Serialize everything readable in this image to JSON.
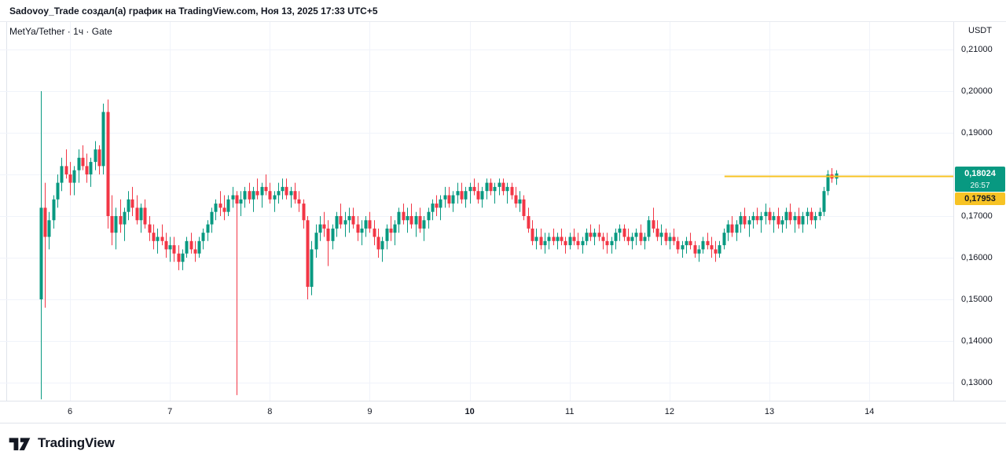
{
  "attribution": {
    "text": "Sadovoy_Trade создал(а) график на TradingView.com, Ноя 13, 2025 17:33 UTC+5"
  },
  "chart_header": {
    "symbol_title": "MetYa/Tether · 1ч · Gate",
    "quote_currency": "USDT"
  },
  "price_scale": {
    "labels": [
      {
        "price": 0.21,
        "text": "0,21000"
      },
      {
        "price": 0.2,
        "text": "0,20000"
      },
      {
        "price": 0.19,
        "text": "0,19000"
      },
      {
        "price": 0.17,
        "text": "0,17000"
      },
      {
        "price": 0.16,
        "text": "0,16000"
      },
      {
        "price": 0.15,
        "text": "0,15000"
      },
      {
        "price": 0.14,
        "text": "0,14000"
      },
      {
        "price": 0.13,
        "text": "0,13000"
      }
    ],
    "last_price_badge": {
      "text": "0,18024",
      "countdown": "26:57",
      "price": 0.18024,
      "bg": "#089981",
      "fg": "#ffffff"
    },
    "drawing_price_badge": {
      "text": "0,17953",
      "price": 0.17953,
      "bg": "#F7C325",
      "fg": "#131722"
    }
  },
  "time_scale": {
    "ticks": [
      {
        "day": 6,
        "label": "6",
        "bold": false
      },
      {
        "day": 7,
        "label": "7",
        "bold": false
      },
      {
        "day": 8,
        "label": "8",
        "bold": false
      },
      {
        "day": 9,
        "label": "9",
        "bold": false
      },
      {
        "day": 10,
        "label": "10",
        "bold": true
      },
      {
        "day": 11,
        "label": "11",
        "bold": false
      },
      {
        "day": 12,
        "label": "12",
        "bold": false
      },
      {
        "day": 13,
        "label": "13",
        "bold": false
      },
      {
        "day": 14,
        "label": "14",
        "bold": false
      }
    ]
  },
  "footer": {
    "brand": "TradingView"
  },
  "chart_data": {
    "type": "candlestick",
    "symbol": "MetYa/Tether",
    "interval": "1ч",
    "exchange": "Gate",
    "quote_currency": "USDT",
    "up_color": "#089981",
    "down_color": "#F23645",
    "grid": true,
    "grid_color": "#F0F3FA",
    "x_axis": {
      "unit": "day_of_november_2025",
      "start_day": 5.708,
      "step_days": 0.0416667,
      "visible_range": [
        5.3,
        14.84
      ]
    },
    "y_axis": {
      "visible_range": [
        0.12566,
        0.2166
      ],
      "tick_step": 0.01,
      "grid_prices": [
        0.21,
        0.2,
        0.19,
        0.18,
        0.17,
        0.16,
        0.15,
        0.14,
        0.13
      ]
    },
    "last_price": 0.18024,
    "bar_countdown": "26:57",
    "drawings": [
      {
        "type": "horizontal_ray",
        "price": 0.17953,
        "start_day": 12.55,
        "color": "#F7C325",
        "stroke_width": 2
      }
    ],
    "candles_ohlc": [
      [
        0.15,
        0.2,
        0.126,
        0.172
      ],
      [
        0.172,
        0.178,
        0.148,
        0.165
      ],
      [
        0.165,
        0.171,
        0.162,
        0.169
      ],
      [
        0.169,
        0.175,
        0.167,
        0.174
      ],
      [
        0.174,
        0.18,
        0.172,
        0.178
      ],
      [
        0.178,
        0.184,
        0.176,
        0.182
      ],
      [
        0.182,
        0.186,
        0.179,
        0.18
      ],
      [
        0.18,
        0.183,
        0.175,
        0.178
      ],
      [
        0.178,
        0.182,
        0.175,
        0.181
      ],
      [
        0.181,
        0.186,
        0.178,
        0.184
      ],
      [
        0.184,
        0.187,
        0.181,
        0.182
      ],
      [
        0.182,
        0.185,
        0.178,
        0.18
      ],
      [
        0.18,
        0.184,
        0.177,
        0.183
      ],
      [
        0.183,
        0.188,
        0.181,
        0.186
      ],
      [
        0.186,
        0.187,
        0.18,
        0.182
      ],
      [
        0.182,
        0.197,
        0.18,
        0.195
      ],
      [
        0.195,
        0.198,
        0.167,
        0.17
      ],
      [
        0.17,
        0.175,
        0.163,
        0.166
      ],
      [
        0.166,
        0.172,
        0.162,
        0.17
      ],
      [
        0.17,
        0.174,
        0.166,
        0.168
      ],
      [
        0.168,
        0.172,
        0.164,
        0.171
      ],
      [
        0.171,
        0.176,
        0.169,
        0.174
      ],
      [
        0.174,
        0.177,
        0.17,
        0.172
      ],
      [
        0.172,
        0.175,
        0.168,
        0.169
      ],
      [
        0.169,
        0.173,
        0.166,
        0.172
      ],
      [
        0.172,
        0.174,
        0.167,
        0.168
      ],
      [
        0.168,
        0.17,
        0.164,
        0.166
      ],
      [
        0.166,
        0.168,
        0.162,
        0.164
      ],
      [
        0.164,
        0.167,
        0.161,
        0.165
      ],
      [
        0.165,
        0.168,
        0.163,
        0.164
      ],
      [
        0.164,
        0.166,
        0.16,
        0.162
      ],
      [
        0.162,
        0.165,
        0.159,
        0.163
      ],
      [
        0.163,
        0.165,
        0.159,
        0.161
      ],
      [
        0.161,
        0.163,
        0.157,
        0.159
      ],
      [
        0.159,
        0.162,
        0.157,
        0.161
      ],
      [
        0.161,
        0.165,
        0.16,
        0.164
      ],
      [
        0.164,
        0.166,
        0.161,
        0.162
      ],
      [
        0.162,
        0.164,
        0.159,
        0.161
      ],
      [
        0.161,
        0.165,
        0.16,
        0.164
      ],
      [
        0.164,
        0.167,
        0.162,
        0.166
      ],
      [
        0.166,
        0.169,
        0.164,
        0.168
      ],
      [
        0.168,
        0.172,
        0.166,
        0.171
      ],
      [
        0.171,
        0.174,
        0.169,
        0.173
      ],
      [
        0.173,
        0.176,
        0.17,
        0.172
      ],
      [
        0.172,
        0.175,
        0.169,
        0.171
      ],
      [
        0.171,
        0.175,
        0.17,
        0.174
      ],
      [
        0.174,
        0.177,
        0.172,
        0.175
      ],
      [
        0.175,
        0.176,
        0.127,
        0.173
      ],
      [
        0.173,
        0.176,
        0.17,
        0.174
      ],
      [
        0.174,
        0.177,
        0.172,
        0.176
      ],
      [
        0.176,
        0.178,
        0.173,
        0.174
      ],
      [
        0.174,
        0.177,
        0.171,
        0.176
      ],
      [
        0.176,
        0.179,
        0.174,
        0.175
      ],
      [
        0.175,
        0.178,
        0.172,
        0.177
      ],
      [
        0.177,
        0.18,
        0.175,
        0.176
      ],
      [
        0.176,
        0.178,
        0.173,
        0.174
      ],
      [
        0.174,
        0.176,
        0.171,
        0.175
      ],
      [
        0.175,
        0.178,
        0.173,
        0.176
      ],
      [
        0.176,
        0.179,
        0.174,
        0.177
      ],
      [
        0.177,
        0.179,
        0.174,
        0.175
      ],
      [
        0.175,
        0.177,
        0.172,
        0.176
      ],
      [
        0.176,
        0.178,
        0.173,
        0.174
      ],
      [
        0.174,
        0.176,
        0.171,
        0.173
      ],
      [
        0.173,
        0.174,
        0.167,
        0.169
      ],
      [
        0.169,
        0.17,
        0.15,
        0.153
      ],
      [
        0.153,
        0.164,
        0.151,
        0.162
      ],
      [
        0.162,
        0.168,
        0.16,
        0.166
      ],
      [
        0.166,
        0.17,
        0.164,
        0.168
      ],
      [
        0.168,
        0.171,
        0.165,
        0.167
      ],
      [
        0.167,
        0.169,
        0.158,
        0.164
      ],
      [
        0.164,
        0.168,
        0.162,
        0.167
      ],
      [
        0.167,
        0.171,
        0.165,
        0.17
      ],
      [
        0.17,
        0.173,
        0.167,
        0.168
      ],
      [
        0.168,
        0.171,
        0.165,
        0.169
      ],
      [
        0.169,
        0.172,
        0.166,
        0.17
      ],
      [
        0.17,
        0.172,
        0.167,
        0.168
      ],
      [
        0.168,
        0.17,
        0.164,
        0.166
      ],
      [
        0.166,
        0.169,
        0.163,
        0.167
      ],
      [
        0.167,
        0.17,
        0.165,
        0.169
      ],
      [
        0.169,
        0.171,
        0.166,
        0.167
      ],
      [
        0.167,
        0.169,
        0.163,
        0.165
      ],
      [
        0.165,
        0.167,
        0.16,
        0.162
      ],
      [
        0.162,
        0.165,
        0.159,
        0.164
      ],
      [
        0.164,
        0.168,
        0.162,
        0.167
      ],
      [
        0.167,
        0.17,
        0.164,
        0.166
      ],
      [
        0.166,
        0.169,
        0.163,
        0.168
      ],
      [
        0.168,
        0.172,
        0.166,
        0.171
      ],
      [
        0.171,
        0.173,
        0.168,
        0.169
      ],
      [
        0.169,
        0.172,
        0.166,
        0.17
      ],
      [
        0.17,
        0.173,
        0.167,
        0.168
      ],
      [
        0.168,
        0.171,
        0.165,
        0.17
      ],
      [
        0.17,
        0.172,
        0.166,
        0.167
      ],
      [
        0.167,
        0.17,
        0.164,
        0.169
      ],
      [
        0.169,
        0.172,
        0.167,
        0.171
      ],
      [
        0.171,
        0.174,
        0.169,
        0.173
      ],
      [
        0.173,
        0.175,
        0.17,
        0.172
      ],
      [
        0.172,
        0.175,
        0.169,
        0.174
      ],
      [
        0.174,
        0.177,
        0.172,
        0.175
      ],
      [
        0.175,
        0.177,
        0.172,
        0.173
      ],
      [
        0.173,
        0.176,
        0.171,
        0.175
      ],
      [
        0.175,
        0.178,
        0.173,
        0.176
      ],
      [
        0.176,
        0.178,
        0.173,
        0.174
      ],
      [
        0.174,
        0.177,
        0.172,
        0.176
      ],
      [
        0.176,
        0.178,
        0.173,
        0.177
      ],
      [
        0.177,
        0.179,
        0.175,
        0.176
      ],
      [
        0.176,
        0.178,
        0.173,
        0.174
      ],
      [
        0.174,
        0.177,
        0.172,
        0.176
      ],
      [
        0.176,
        0.179,
        0.174,
        0.178
      ],
      [
        0.178,
        0.179,
        0.175,
        0.176
      ],
      [
        0.176,
        0.178,
        0.173,
        0.177
      ],
      [
        0.177,
        0.179,
        0.175,
        0.178
      ],
      [
        0.178,
        0.179,
        0.175,
        0.176
      ],
      [
        0.176,
        0.178,
        0.173,
        0.177
      ],
      [
        0.177,
        0.178,
        0.174,
        0.175
      ],
      [
        0.175,
        0.177,
        0.172,
        0.173
      ],
      [
        0.173,
        0.176,
        0.171,
        0.174
      ],
      [
        0.174,
        0.175,
        0.169,
        0.17
      ],
      [
        0.17,
        0.172,
        0.166,
        0.167
      ],
      [
        0.167,
        0.169,
        0.163,
        0.164
      ],
      [
        0.164,
        0.167,
        0.162,
        0.165
      ],
      [
        0.165,
        0.167,
        0.162,
        0.163
      ],
      [
        0.163,
        0.166,
        0.161,
        0.164
      ],
      [
        0.164,
        0.166,
        0.162,
        0.165
      ],
      [
        0.165,
        0.167,
        0.163,
        0.164
      ],
      [
        0.164,
        0.166,
        0.162,
        0.165
      ],
      [
        0.165,
        0.167,
        0.163,
        0.164
      ],
      [
        0.164,
        0.165,
        0.161,
        0.163
      ],
      [
        0.163,
        0.166,
        0.162,
        0.165
      ],
      [
        0.165,
        0.167,
        0.163,
        0.164
      ],
      [
        0.164,
        0.166,
        0.162,
        0.163
      ],
      [
        0.163,
        0.165,
        0.161,
        0.164
      ],
      [
        0.164,
        0.167,
        0.163,
        0.166
      ],
      [
        0.166,
        0.168,
        0.164,
        0.165
      ],
      [
        0.165,
        0.167,
        0.163,
        0.166
      ],
      [
        0.166,
        0.168,
        0.164,
        0.165
      ],
      [
        0.165,
        0.166,
        0.162,
        0.164
      ],
      [
        0.164,
        0.166,
        0.161,
        0.163
      ],
      [
        0.163,
        0.165,
        0.161,
        0.164
      ],
      [
        0.164,
        0.167,
        0.162,
        0.166
      ],
      [
        0.166,
        0.168,
        0.164,
        0.167
      ],
      [
        0.167,
        0.168,
        0.164,
        0.165
      ],
      [
        0.165,
        0.167,
        0.163,
        0.164
      ],
      [
        0.164,
        0.166,
        0.162,
        0.165
      ],
      [
        0.165,
        0.167,
        0.163,
        0.166
      ],
      [
        0.166,
        0.168,
        0.163,
        0.164
      ],
      [
        0.164,
        0.166,
        0.162,
        0.165
      ],
      [
        0.165,
        0.17,
        0.164,
        0.169
      ],
      [
        0.169,
        0.172,
        0.166,
        0.167
      ],
      [
        0.167,
        0.169,
        0.164,
        0.165
      ],
      [
        0.165,
        0.168,
        0.163,
        0.166
      ],
      [
        0.166,
        0.167,
        0.163,
        0.164
      ],
      [
        0.164,
        0.166,
        0.162,
        0.165
      ],
      [
        0.165,
        0.167,
        0.163,
        0.164
      ],
      [
        0.164,
        0.165,
        0.161,
        0.162
      ],
      [
        0.162,
        0.164,
        0.16,
        0.163
      ],
      [
        0.163,
        0.165,
        0.161,
        0.164
      ],
      [
        0.164,
        0.166,
        0.162,
        0.163
      ],
      [
        0.163,
        0.164,
        0.16,
        0.161
      ],
      [
        0.161,
        0.163,
        0.159,
        0.162
      ],
      [
        0.162,
        0.165,
        0.161,
        0.164
      ],
      [
        0.164,
        0.166,
        0.162,
        0.163
      ],
      [
        0.163,
        0.165,
        0.16,
        0.162
      ],
      [
        0.162,
        0.164,
        0.159,
        0.161
      ],
      [
        0.161,
        0.164,
        0.16,
        0.163
      ],
      [
        0.163,
        0.167,
        0.162,
        0.166
      ],
      [
        0.166,
        0.169,
        0.164,
        0.168
      ],
      [
        0.168,
        0.17,
        0.165,
        0.166
      ],
      [
        0.166,
        0.169,
        0.164,
        0.168
      ],
      [
        0.168,
        0.171,
        0.166,
        0.17
      ],
      [
        0.17,
        0.172,
        0.167,
        0.168
      ],
      [
        0.168,
        0.17,
        0.165,
        0.169
      ],
      [
        0.169,
        0.171,
        0.167,
        0.17
      ],
      [
        0.17,
        0.172,
        0.168,
        0.169
      ],
      [
        0.169,
        0.171,
        0.166,
        0.17
      ],
      [
        0.17,
        0.173,
        0.168,
        0.171
      ],
      [
        0.171,
        0.172,
        0.168,
        0.169
      ],
      [
        0.169,
        0.171,
        0.166,
        0.17
      ],
      [
        0.17,
        0.172,
        0.167,
        0.168
      ],
      [
        0.168,
        0.17,
        0.166,
        0.169
      ],
      [
        0.169,
        0.172,
        0.167,
        0.171
      ],
      [
        0.171,
        0.173,
        0.168,
        0.169
      ],
      [
        0.169,
        0.171,
        0.166,
        0.17
      ],
      [
        0.17,
        0.172,
        0.167,
        0.168
      ],
      [
        0.168,
        0.171,
        0.166,
        0.17
      ],
      [
        0.17,
        0.172,
        0.168,
        0.171
      ],
      [
        0.171,
        0.172,
        0.168,
        0.169
      ],
      [
        0.169,
        0.171,
        0.167,
        0.17
      ],
      [
        0.17,
        0.172,
        0.169,
        0.171
      ],
      [
        0.171,
        0.177,
        0.17,
        0.176
      ],
      [
        0.176,
        0.181,
        0.175,
        0.18
      ],
      [
        0.18,
        0.1815,
        0.178,
        0.179
      ],
      [
        0.179,
        0.181,
        0.1775,
        0.18024
      ]
    ]
  }
}
